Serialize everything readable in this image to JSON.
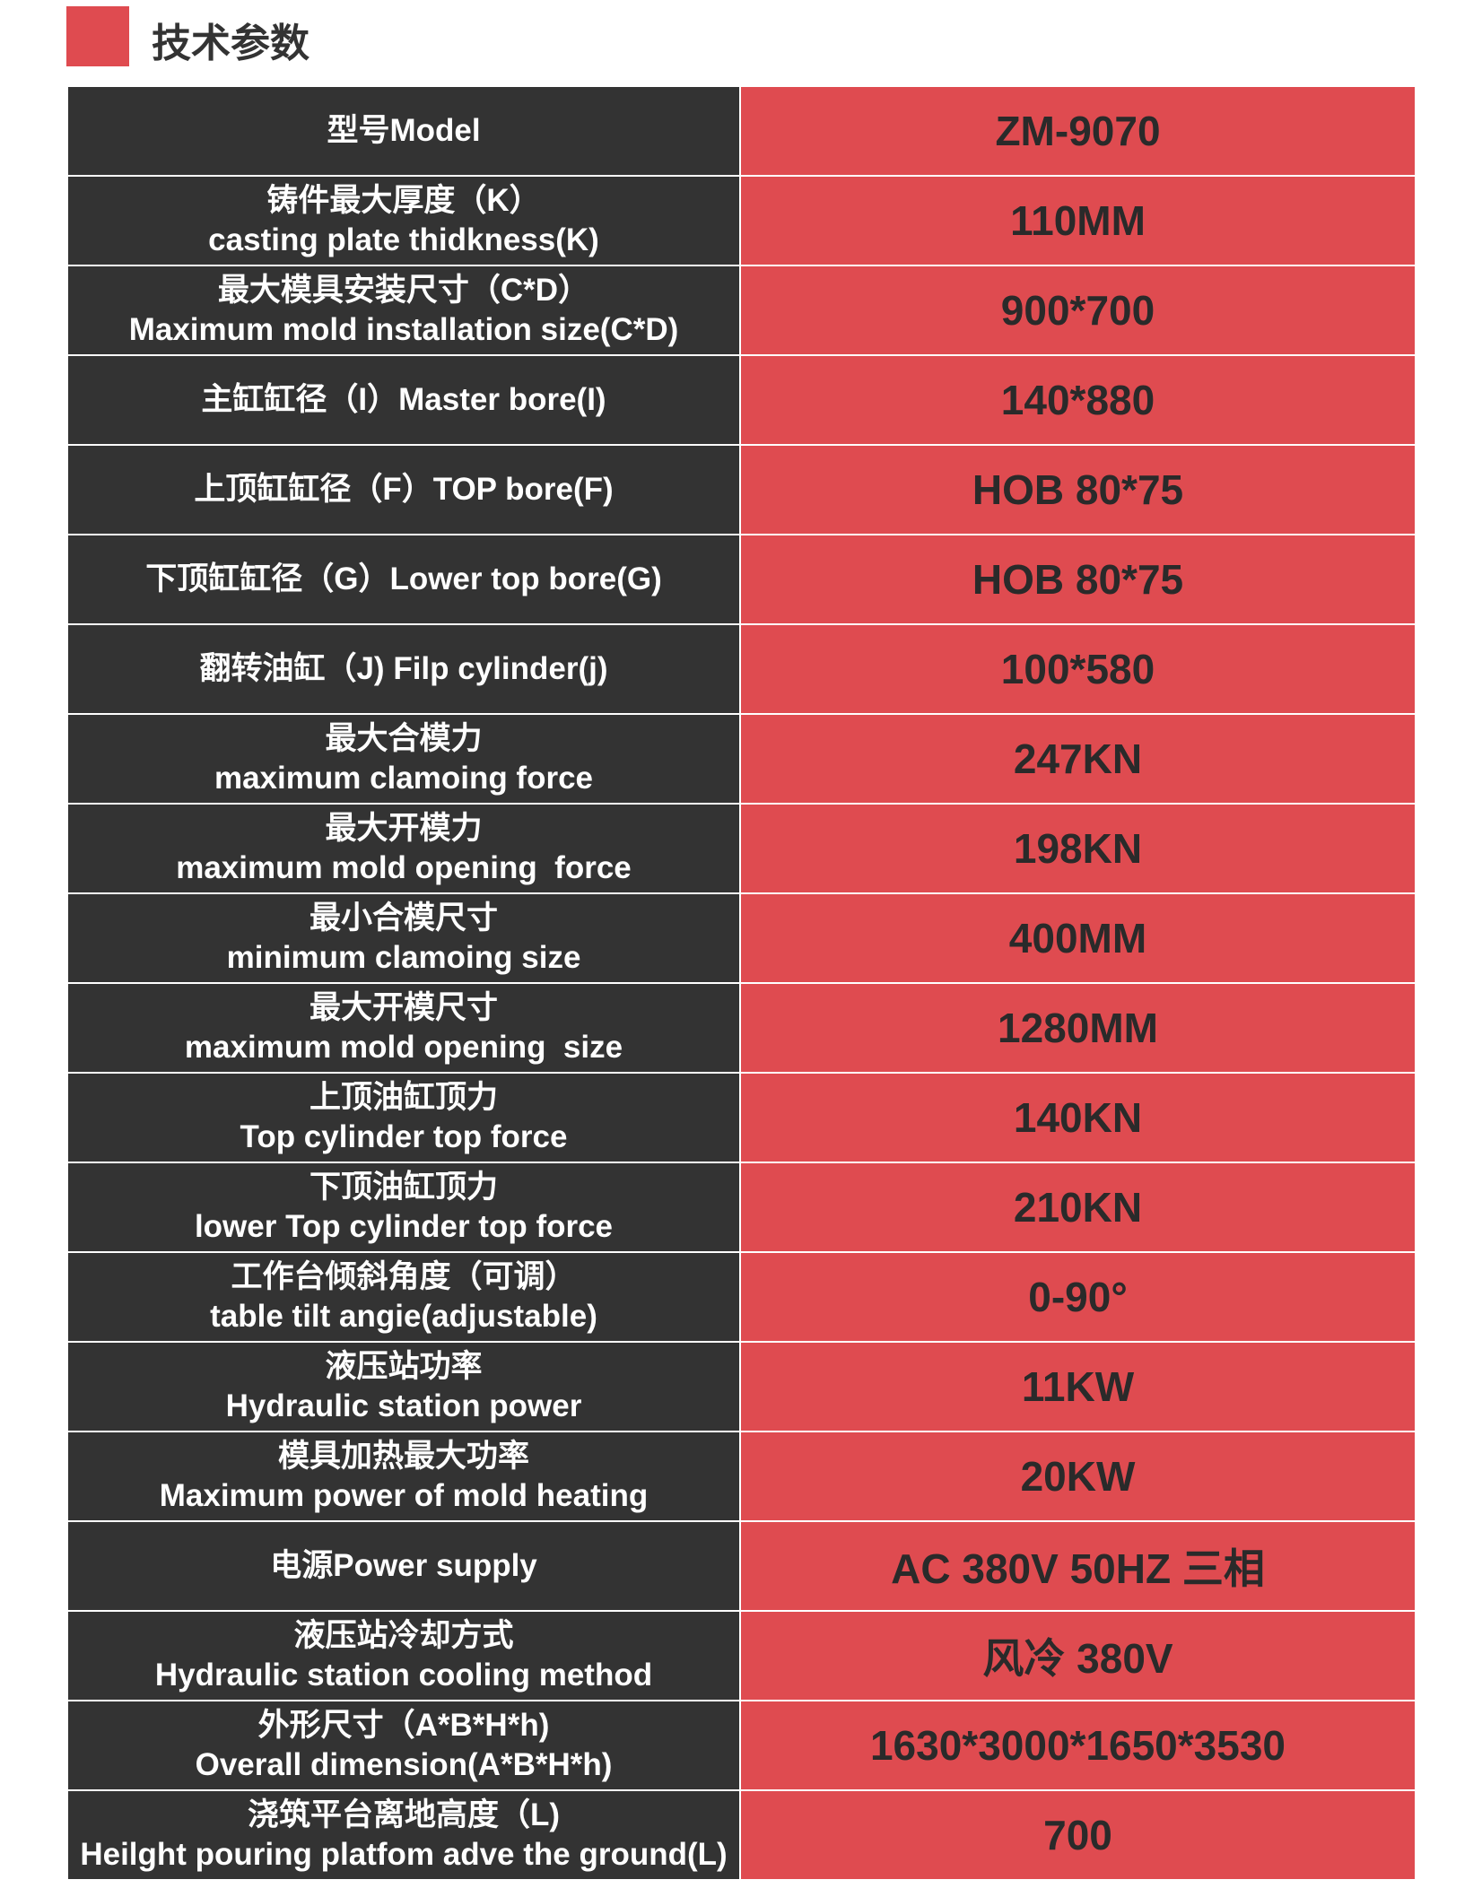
{
  "header": {
    "title": "技术参数"
  },
  "table": {
    "rows": [
      {
        "label": [
          "型号Model"
        ],
        "value": "ZM-9070"
      },
      {
        "label": [
          "铸件最大厚度（K）",
          "casting plate thidkness(K)"
        ],
        "value": "110MM"
      },
      {
        "label": [
          "最大模具安装尺寸（C*D）",
          "Maximum mold installation size(C*D)"
        ],
        "value": "900*700"
      },
      {
        "label": [
          "主缸缸径（I）Master bore(I)"
        ],
        "value": "140*880"
      },
      {
        "label": [
          "上顶缸缸径（F）TOP bore(F)"
        ],
        "value": "HOB 80*75"
      },
      {
        "label": [
          "下顶缸缸径（G）Lower top bore(G)"
        ],
        "value": "HOB 80*75"
      },
      {
        "label": [
          "翻转油缸（J) Filp cylinder(j)"
        ],
        "value": "100*580"
      },
      {
        "label": [
          "最大合模力",
          "maximum clamoing force"
        ],
        "value": "247KN"
      },
      {
        "label": [
          "最大开模力",
          "maximum mold opening  force"
        ],
        "value": "198KN"
      },
      {
        "label": [
          "最小合模尺寸",
          "minimum clamoing size"
        ],
        "value": "400MM"
      },
      {
        "label": [
          "最大开模尺寸",
          "maximum mold opening  size"
        ],
        "value": "1280MM"
      },
      {
        "label": [
          "上顶油缸顶力",
          "Top cylinder top force"
        ],
        "value": "140KN"
      },
      {
        "label": [
          "下顶油缸顶力",
          "lower Top cylinder top force"
        ],
        "value": "210KN"
      },
      {
        "label": [
          "工作台倾斜角度（可调）",
          "table tilt angie(adjustable)"
        ],
        "value": "0-90°"
      },
      {
        "label": [
          "液压站功率",
          "Hydraulic station power"
        ],
        "value": "11KW"
      },
      {
        "label": [
          "模具加热最大功率",
          "Maximum power of mold heating"
        ],
        "value": "20KW"
      },
      {
        "label": [
          "电源Power supply"
        ],
        "value": "AC 380V 50HZ 三相"
      },
      {
        "label": [
          "液压站冷却方式",
          "Hydraulic station cooling method"
        ],
        "value": "风冷 380V"
      },
      {
        "label": [
          "外形尺寸（A*B*H*h)",
          "Overall dimension(A*B*H*h)"
        ],
        "value": "1630*3000*1650*3530"
      },
      {
        "label": [
          "浇筑平台离地高度（L)",
          "Heilght pouring platfom adve the ground(L)"
        ],
        "value": "700"
      }
    ]
  }
}
